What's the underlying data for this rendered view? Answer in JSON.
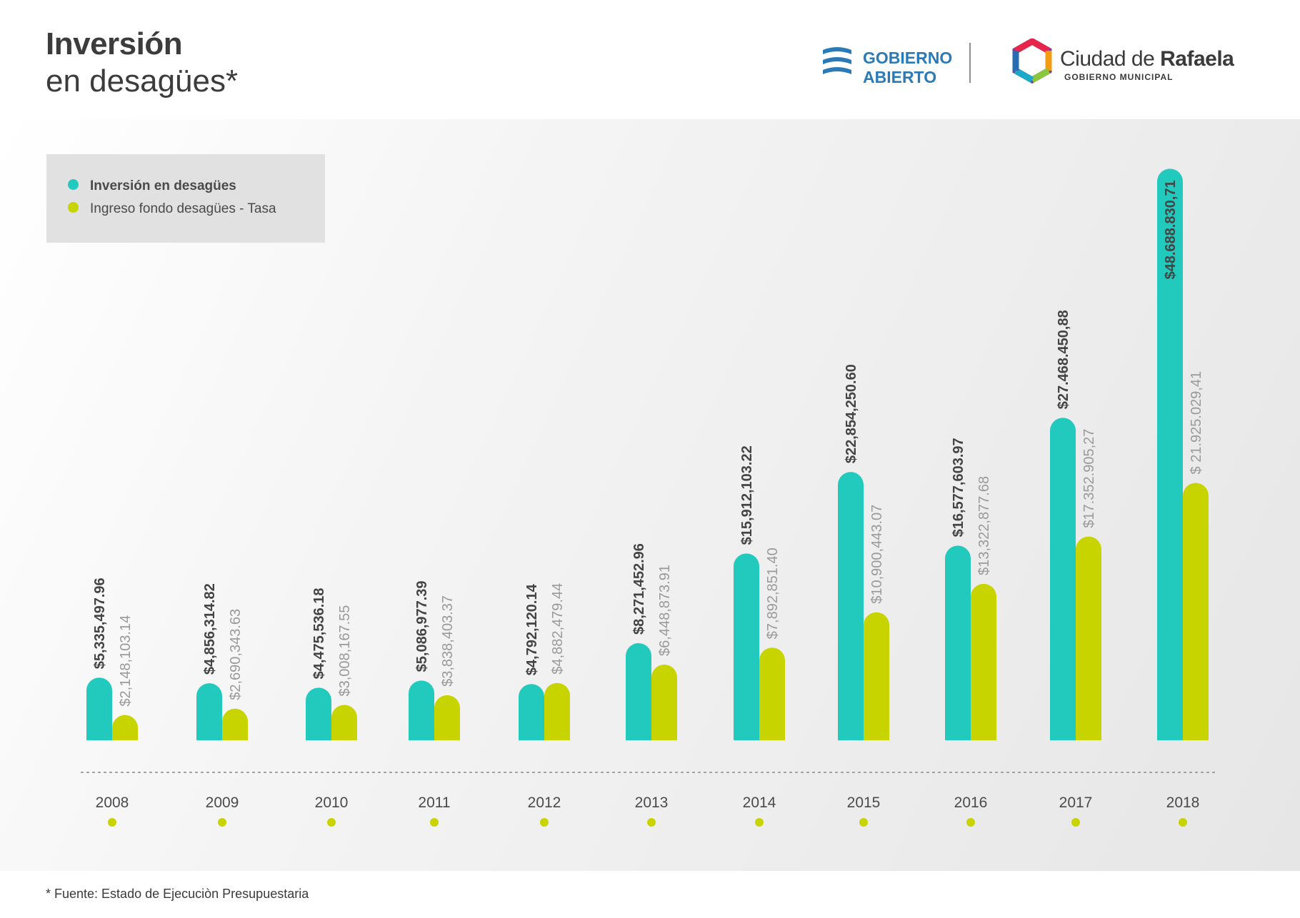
{
  "title": {
    "line1": "Inversión",
    "line2": "en desagües*"
  },
  "logos": {
    "gobierno_abierto": {
      "line1": "GOBIERNO",
      "line2": "ABIERTO"
    },
    "rafaela": {
      "name_light": "Ciudad de ",
      "name_bold": "Rafaela",
      "sub": "GOBIERNO MUNICIPAL"
    }
  },
  "colors": {
    "teal": "#22c9bd",
    "lime": "#c8d400",
    "label_dark": "#444444",
    "label_light": "#9a9a9a",
    "year_dot": "#c8d400"
  },
  "legend": {
    "items": [
      {
        "label": "Inversión en desagües",
        "color": "#22c9bd"
      },
      {
        "label": "Ingreso fondo desagües - Tasa",
        "color": "#c8d400"
      }
    ]
  },
  "chart_data": {
    "type": "bar",
    "title": "",
    "categories": [
      "2008",
      "2009",
      "2010",
      "2011",
      "2012",
      "2013",
      "2014",
      "2015",
      "2016",
      "2017",
      "2018"
    ],
    "series": [
      {
        "name": "Inversión en desagües",
        "values": [
          5335497.96,
          4856314.82,
          4475536.18,
          5086977.39,
          4792120.14,
          8271452.96,
          15912103.22,
          22854250.6,
          16577603.97,
          27468450.88,
          48688830.71
        ],
        "labels": [
          "$5,335,497.96",
          "$4,856,314.82",
          "$4,475,536.18",
          "$5,086,977.39",
          "$4,792,120.14",
          "$8,271,452.96",
          "$15,912,103.22",
          "$22,854,250.60",
          "$16,577,603.97",
          "$27.468.450,88",
          "$48.688.830,71"
        ]
      },
      {
        "name": "Ingreso fondo desagües - Tasa",
        "values": [
          2148103.14,
          2690343.63,
          3008167.55,
          3838403.37,
          4882479.44,
          6448873.91,
          7892851.4,
          10900443.07,
          13322877.68,
          17352905.27,
          21925029.41
        ],
        "labels": [
          "$2,148,103.14",
          "$2,690,343.63",
          "$3,008,167.55",
          "$3,838,403.37",
          "$4,882,479.44",
          "$6,448,873.91",
          "$7,892,851.40",
          "$10,900,443.07",
          "$13,322,877.68",
          "$17.352.905,27",
          "$ 21.925.029,41"
        ]
      }
    ],
    "xlabel": "",
    "ylabel": "",
    "grid": false,
    "legend_position": "top-left"
  },
  "footnote": "* Fuente: Estado de Ejecuciòn Presupuestaria"
}
